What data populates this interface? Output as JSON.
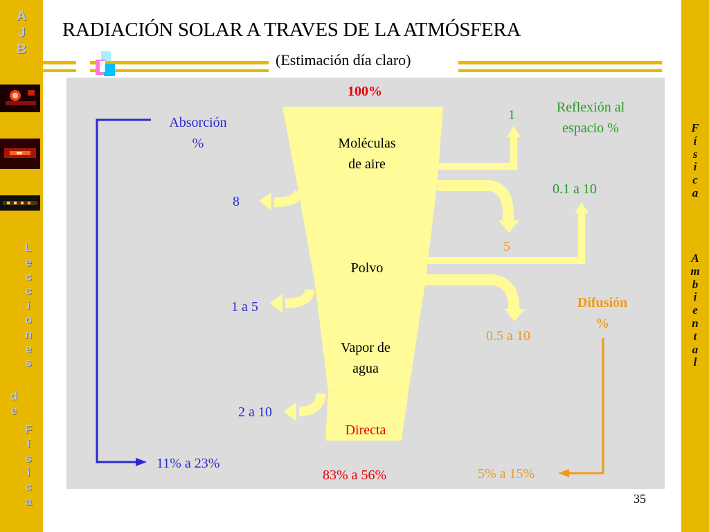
{
  "sidebar_left": {
    "logo_letters": [
      "A",
      "J",
      "B"
    ],
    "vertical_text": [
      "L",
      "e",
      "c",
      "c",
      "i",
      "o",
      "n",
      "e",
      "s",
      "",
      "d",
      "e",
      "",
      "F",
      "í",
      "s",
      "i",
      "c",
      "a"
    ]
  },
  "sidebar_right": {
    "vertical_text": [
      "F",
      "í",
      "s",
      "i",
      "c",
      "a",
      "",
      "A",
      "m",
      "b",
      "i",
      "e",
      "n",
      "t",
      "a",
      "l"
    ]
  },
  "title": "RADIACIÓN SOLAR A TRAVES DE LA ATMÓSFERA",
  "subtitle": "(Estimación día claro)",
  "diagram": {
    "top_value": "100%",
    "layers": {
      "molecules_line1": "Moléculas",
      "molecules_line2": "de aire",
      "dust": "Polvo",
      "vapor_line1": "Vapor de",
      "vapor_line2": "agua",
      "direct": "Directa"
    },
    "absorption": {
      "header_line1": "Absorción",
      "header_line2": "%",
      "molecules": "8",
      "dust": "1 a 5",
      "vapor": "2 a 10",
      "total": "11% a 23%"
    },
    "reflection": {
      "header_line1": "Reflexión al",
      "header_line2": "espacio %",
      "molecules": "1",
      "dust": "0.1 a 10"
    },
    "diffusion": {
      "header_line1": "Difusión",
      "header_line2": "%",
      "molecules": "5",
      "dust": "0.5 a 10",
      "total": "5% a 15%"
    },
    "direct_total": "83% a 56%"
  },
  "page_number": "35",
  "colors": {
    "sidebar": "#e8b800",
    "panel": "#dcdcdc",
    "funnel": "#fffb99",
    "absorption": "#2a2ad0",
    "reflection": "#2a9a2a",
    "diffusion": "#f09a1a",
    "direct": "#e80000"
  }
}
